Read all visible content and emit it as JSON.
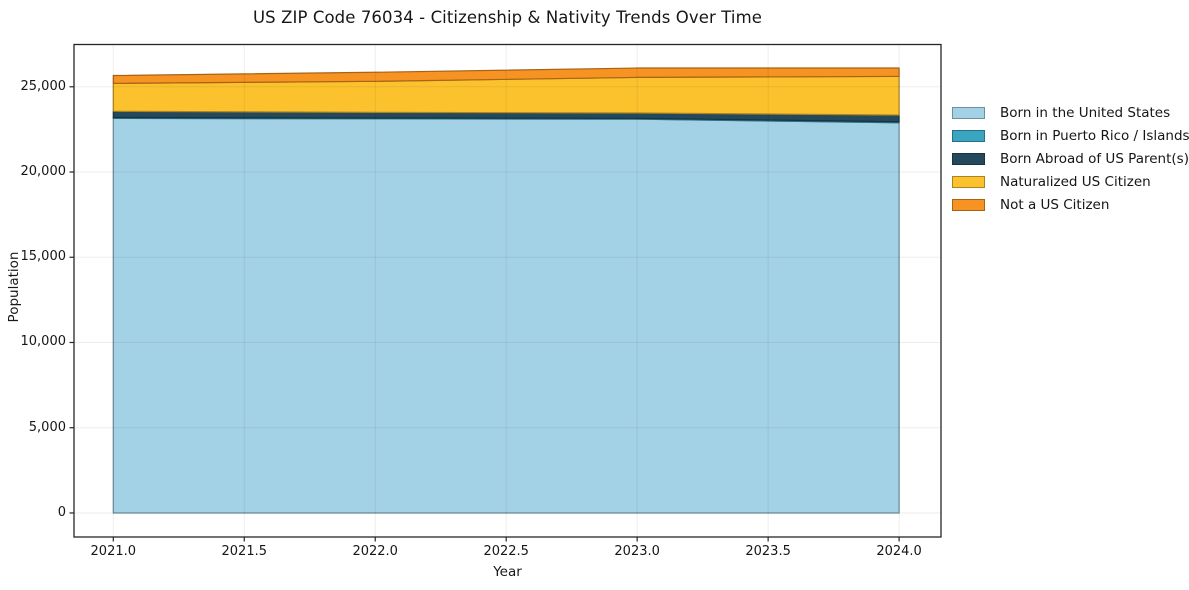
{
  "chart_data": {
    "type": "area",
    "stacked": true,
    "title": "US ZIP Code 76034 - Citizenship & Nativity Trends Over Time",
    "xlabel": "Year",
    "ylabel": "Population",
    "x": [
      2021,
      2022,
      2023,
      2024
    ],
    "series": [
      {
        "name": "Born in the United States",
        "color": "#a3d2e6",
        "values": [
          23150,
          23120,
          23100,
          22890
        ]
      },
      {
        "name": "Born in Puerto Rico / Islands",
        "color": "#3aa5c1",
        "values": [
          50,
          50,
          50,
          60
        ]
      },
      {
        "name": "Born Abroad of US Parent(s)",
        "color": "#24495c",
        "values": [
          360,
          330,
          310,
          390
        ]
      },
      {
        "name": "Naturalized US Citizen",
        "color": "#fcc22e",
        "values": [
          1640,
          1820,
          2090,
          2270
        ]
      },
      {
        "name": "Not a US Citizen",
        "color": "#f69322",
        "values": [
          460,
          530,
          550,
          490
        ]
      }
    ],
    "xticks": [
      2021.0,
      2021.5,
      2022.0,
      2022.5,
      2023.0,
      2023.5,
      2024.0
    ],
    "xtick_labels": [
      "2021.0",
      "2021.5",
      "2022.0",
      "2022.5",
      "2023.0",
      "2023.5",
      "2024.0"
    ],
    "yticks": [
      0,
      5000,
      10000,
      15000,
      20000,
      25000
    ],
    "ytick_labels": [
      "0",
      "5,000",
      "10,000",
      "15,000",
      "20,000",
      "25,000"
    ],
    "xlim": [
      2020.85,
      2024.16
    ],
    "ylim": [
      -1410,
      27480
    ],
    "grid": true,
    "legend_position": "outside-right-top",
    "colors": {
      "background": "#ffffff",
      "spine": "#262626",
      "grid": "rgba(0,0,0,0.07)",
      "text": "#161616"
    }
  }
}
